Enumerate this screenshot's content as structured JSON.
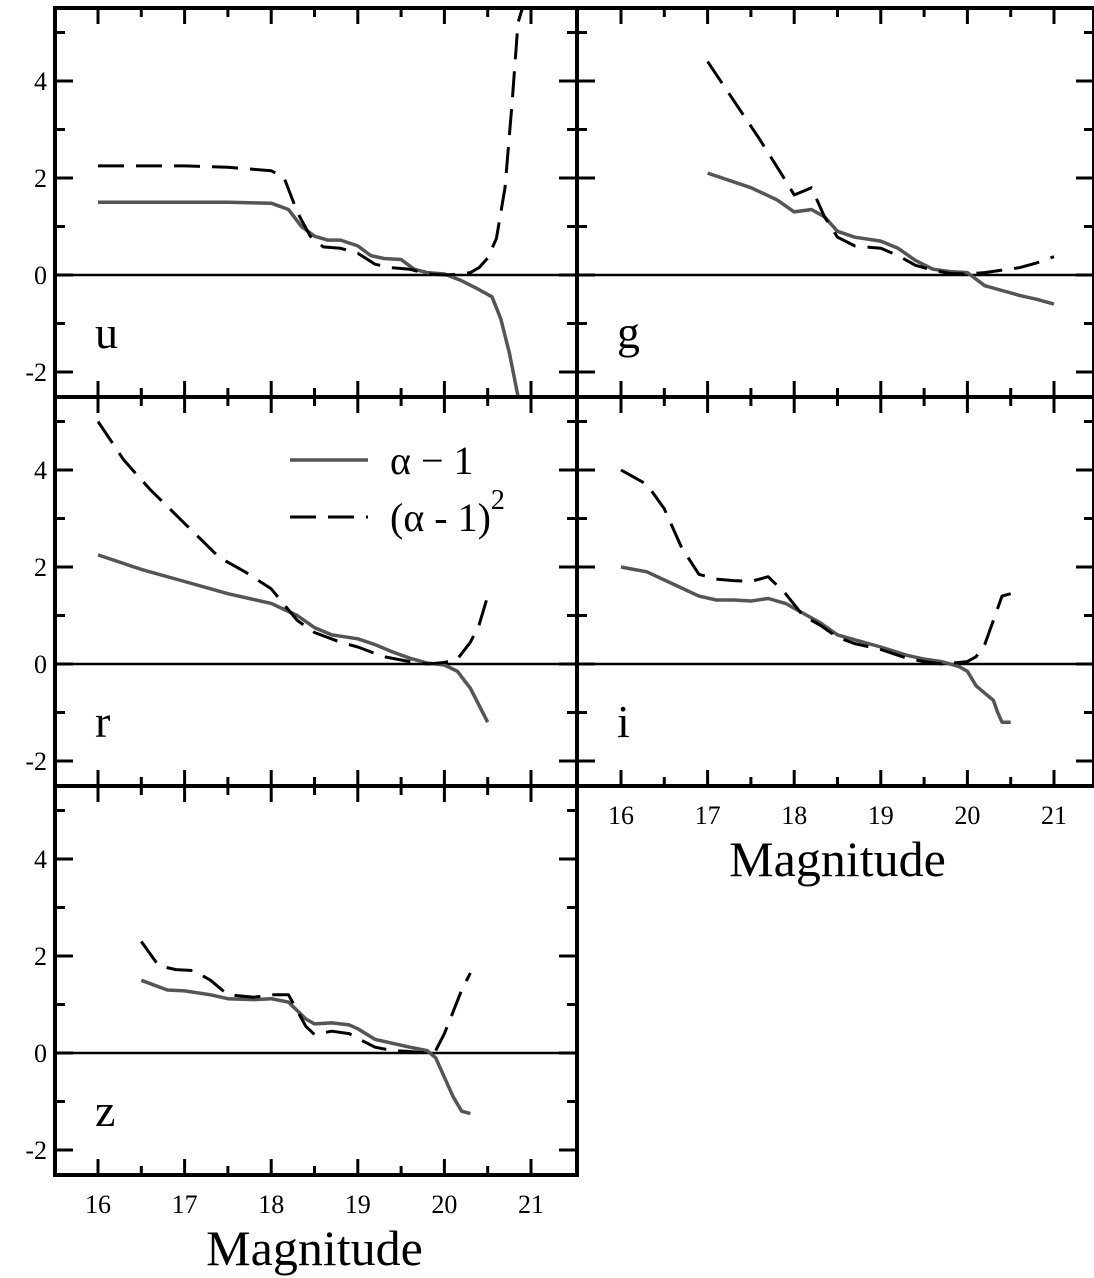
{
  "chart_data": [
    {
      "type": "line",
      "panel": "u",
      "label": "u",
      "xlim": [
        15.5,
        21.5
      ],
      "ylim": [
        -2.5,
        5.5
      ],
      "yticks": [
        "-2",
        "0",
        "2",
        "4"
      ],
      "xticks": [],
      "xlabel": "",
      "series": [
        {
          "style": "solid",
          "x": [
            16.0,
            16.5,
            17.0,
            17.5,
            18.0,
            18.2,
            18.35,
            18.5,
            18.65,
            18.8,
            19.0,
            19.15,
            19.3,
            19.5,
            19.65,
            19.8,
            20.0,
            20.2,
            20.4,
            20.55,
            20.65,
            20.75,
            20.85
          ],
          "y": [
            1.5,
            1.5,
            1.5,
            1.5,
            1.48,
            1.35,
            1.0,
            0.8,
            0.72,
            0.72,
            0.6,
            0.4,
            0.34,
            0.32,
            0.12,
            0.05,
            0.02,
            -0.12,
            -0.3,
            -0.45,
            -0.9,
            -1.6,
            -2.5
          ]
        },
        {
          "style": "dashed",
          "x": [
            16.0,
            16.5,
            17.0,
            17.5,
            18.0,
            18.15,
            18.3,
            18.45,
            18.6,
            18.8,
            19.0,
            19.2,
            19.4,
            19.6,
            19.8,
            20.0,
            20.2,
            20.3,
            20.4,
            20.5,
            20.6,
            20.7,
            20.78,
            20.85,
            20.9
          ],
          "y": [
            2.25,
            2.25,
            2.25,
            2.22,
            2.15,
            2.0,
            1.3,
            0.8,
            0.58,
            0.55,
            0.45,
            0.22,
            0.15,
            0.12,
            0.02,
            0.0,
            0.02,
            0.05,
            0.15,
            0.35,
            0.75,
            1.8,
            3.5,
            5.2,
            5.5
          ]
        }
      ]
    },
    {
      "type": "line",
      "panel": "g",
      "label": "g",
      "xlim": [
        15.5,
        21.5
      ],
      "ylim": [
        -2.5,
        5.5
      ],
      "yticks": [],
      "xticks": [],
      "xlabel": "",
      "series": [
        {
          "style": "solid",
          "x": [
            17.0,
            17.5,
            17.8,
            18.0,
            18.2,
            18.35,
            18.5,
            18.7,
            19.0,
            19.2,
            19.4,
            19.6,
            19.8,
            20.0,
            20.2,
            20.4,
            20.6,
            20.8,
            21.0
          ],
          "y": [
            2.1,
            1.8,
            1.55,
            1.3,
            1.35,
            1.2,
            0.9,
            0.78,
            0.7,
            0.55,
            0.3,
            0.12,
            0.07,
            0.05,
            -0.22,
            -0.32,
            -0.42,
            -0.5,
            -0.6
          ]
        },
        {
          "style": "dashed",
          "x": [
            17.0,
            17.3,
            17.6,
            17.9,
            18.0,
            18.2,
            18.35,
            18.5,
            18.7,
            19.0,
            19.2,
            19.4,
            19.6,
            19.8,
            20.0,
            20.2,
            20.4,
            20.6,
            20.8,
            21.0
          ],
          "y": [
            4.4,
            3.6,
            2.8,
            1.95,
            1.65,
            1.8,
            1.2,
            0.78,
            0.6,
            0.55,
            0.4,
            0.2,
            0.1,
            0.03,
            0.02,
            0.05,
            0.1,
            0.15,
            0.25,
            0.38
          ]
        }
      ]
    },
    {
      "type": "line",
      "panel": "r",
      "label": "r",
      "xlim": [
        15.5,
        21.5
      ],
      "ylim": [
        -2.5,
        5.5
      ],
      "yticks": [
        "-2",
        "0",
        "2",
        "4"
      ],
      "xticks": [],
      "xlabel": "",
      "legend": {
        "placement": "top-center",
        "entries": [
          {
            "style": "solid",
            "label": "α − 1"
          },
          {
            "style": "dashed",
            "label": "(α - 1)",
            "superscript": "2"
          }
        ]
      },
      "series": [
        {
          "style": "solid",
          "x": [
            16.0,
            16.5,
            17.0,
            17.5,
            18.0,
            18.3,
            18.5,
            18.7,
            19.0,
            19.2,
            19.4,
            19.6,
            19.8,
            20.0,
            20.15,
            20.3,
            20.5
          ],
          "y": [
            2.25,
            1.95,
            1.7,
            1.45,
            1.25,
            1.0,
            0.75,
            0.6,
            0.52,
            0.4,
            0.25,
            0.12,
            0.02,
            -0.02,
            -0.15,
            -0.5,
            -1.2
          ]
        },
        {
          "style": "dashed",
          "x": [
            16.0,
            16.3,
            16.6,
            17.0,
            17.4,
            17.7,
            18.0,
            18.3,
            18.5,
            18.8,
            19.0,
            19.3,
            19.6,
            19.8,
            20.0,
            20.15,
            20.3,
            20.4,
            20.5
          ],
          "y": [
            5.0,
            4.2,
            3.6,
            2.9,
            2.2,
            1.9,
            1.55,
            0.9,
            0.65,
            0.45,
            0.35,
            0.15,
            0.05,
            0.0,
            0.03,
            0.1,
            0.45,
            0.8,
            1.4
          ]
        }
      ]
    },
    {
      "type": "line",
      "panel": "i",
      "label": "i",
      "xlim": [
        15.5,
        21.5
      ],
      "ylim": [
        -2.5,
        5.5
      ],
      "yticks": [],
      "xticks": [
        "16",
        "17",
        "18",
        "19",
        "20",
        "21"
      ],
      "xlabel": "Magnitude",
      "series": [
        {
          "style": "solid",
          "x": [
            16.0,
            16.3,
            16.6,
            16.9,
            17.1,
            17.3,
            17.5,
            17.7,
            17.9,
            18.1,
            18.3,
            18.5,
            18.7,
            19.0,
            19.3,
            19.5,
            19.7,
            19.9,
            20.0,
            20.1,
            20.2,
            20.3,
            20.35,
            20.4,
            20.5
          ],
          "y": [
            2.0,
            1.9,
            1.65,
            1.4,
            1.32,
            1.32,
            1.3,
            1.35,
            1.25,
            1.05,
            0.85,
            0.6,
            0.5,
            0.35,
            0.18,
            0.1,
            0.05,
            -0.05,
            -0.15,
            -0.45,
            -0.6,
            -0.75,
            -1.0,
            -1.2,
            -1.2
          ]
        },
        {
          "style": "dashed",
          "x": [
            16.0,
            16.3,
            16.5,
            16.7,
            16.9,
            17.1,
            17.3,
            17.5,
            17.7,
            17.9,
            18.1,
            18.3,
            18.5,
            18.7,
            19.0,
            19.3,
            19.5,
            19.7,
            20.0,
            20.1,
            20.2,
            20.3,
            20.4,
            20.5
          ],
          "y": [
            4.0,
            3.7,
            3.2,
            2.4,
            1.85,
            1.75,
            1.72,
            1.7,
            1.8,
            1.45,
            1.0,
            0.8,
            0.55,
            0.42,
            0.3,
            0.12,
            0.05,
            0.0,
            0.05,
            0.15,
            0.4,
            0.9,
            1.4,
            1.45
          ]
        }
      ]
    },
    {
      "type": "line",
      "panel": "z",
      "label": "z",
      "xlim": [
        15.5,
        21.5
      ],
      "ylim": [
        -2.5,
        5.5
      ],
      "yticks": [
        "-2",
        "0",
        "2",
        "4"
      ],
      "xticks": [
        "16",
        "17",
        "18",
        "19",
        "20",
        "21"
      ],
      "xlabel": "Magnitude",
      "series": [
        {
          "style": "solid",
          "x": [
            16.5,
            16.8,
            17.0,
            17.3,
            17.5,
            17.8,
            18.0,
            18.2,
            18.4,
            18.5,
            18.7,
            18.9,
            19.0,
            19.2,
            19.4,
            19.6,
            19.8,
            19.9,
            20.0,
            20.1,
            20.2,
            20.3
          ],
          "y": [
            1.5,
            1.3,
            1.28,
            1.2,
            1.12,
            1.1,
            1.12,
            1.05,
            0.7,
            0.6,
            0.62,
            0.58,
            0.5,
            0.28,
            0.2,
            0.12,
            0.05,
            -0.1,
            -0.5,
            -0.9,
            -1.2,
            -1.25
          ]
        },
        {
          "style": "dashed",
          "x": [
            16.5,
            16.7,
            16.9,
            17.1,
            17.3,
            17.5,
            17.8,
            18.0,
            18.2,
            18.4,
            18.5,
            18.7,
            18.9,
            19.0,
            19.2,
            19.4,
            19.6,
            19.8,
            19.9,
            20.0,
            20.1,
            20.2,
            20.3
          ],
          "y": [
            2.3,
            1.8,
            1.72,
            1.7,
            1.5,
            1.2,
            1.15,
            1.2,
            1.2,
            0.55,
            0.38,
            0.45,
            0.4,
            0.3,
            0.12,
            0.05,
            0.03,
            0.0,
            0.05,
            0.4,
            0.85,
            1.3,
            1.65
          ]
        }
      ]
    }
  ]
}
